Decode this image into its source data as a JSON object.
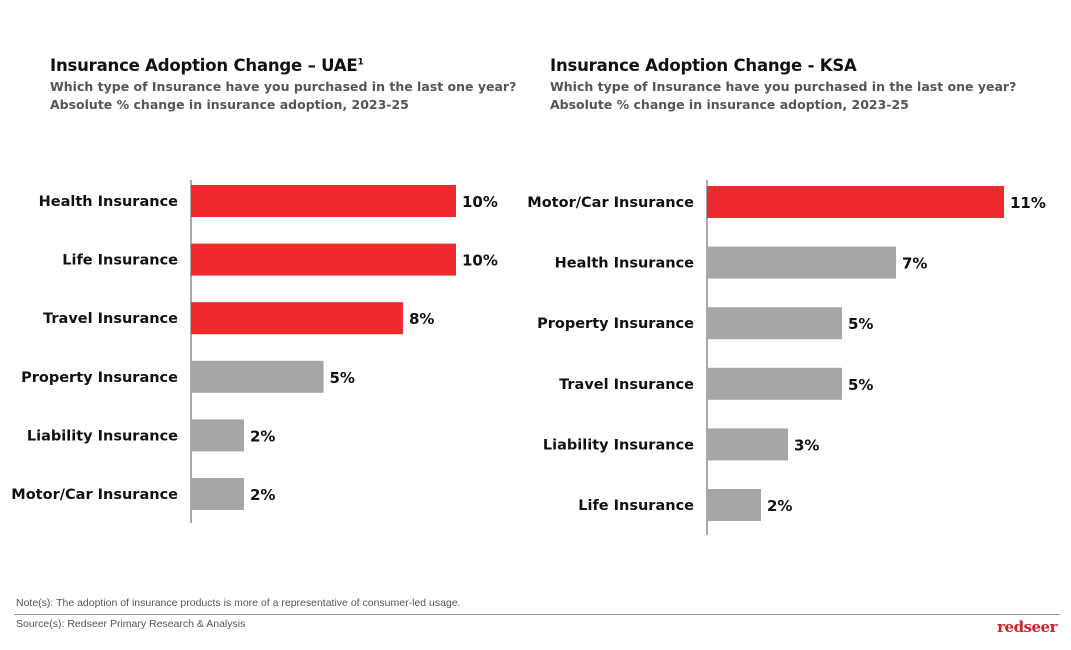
{
  "chart_data": [
    {
      "type": "bar",
      "orientation": "horizontal",
      "title": "Insurance Adoption Change – UAE",
      "title_sup": "1",
      "subtitle": [
        "Which type of Insurance have you purchased in the last one year?",
        "Absolute % change in insurance adoption, 2023-25"
      ],
      "categories": [
        "Health Insurance",
        "Life Insurance",
        "Travel Insurance",
        "Property Insurance",
        "Liability Insurance",
        "Motor/Car Insurance"
      ],
      "values": [
        10,
        10,
        8,
        5,
        2,
        2
      ],
      "labels": [
        "10%",
        "10%",
        "8%",
        "5%",
        "2%",
        "2%"
      ],
      "highlight": [
        true,
        true,
        true,
        false,
        false,
        false
      ],
      "grid": false
    },
    {
      "type": "bar",
      "orientation": "horizontal",
      "title": "Insurance Adoption Change - KSA",
      "title_sup": "",
      "subtitle": [
        "Which type of Insurance have you purchased in the last one year?",
        "Absolute % change in insurance adoption, 2023-25"
      ],
      "categories": [
        "Motor/Car Insurance",
        "Health Insurance",
        "Property Insurance",
        "Travel Insurance",
        "Liability Insurance",
        "Life Insurance"
      ],
      "values": [
        11,
        7,
        5,
        5,
        3,
        2
      ],
      "labels": [
        "11%",
        "7%",
        "5%",
        "5%",
        "3%",
        "2%"
      ],
      "highlight": [
        true,
        false,
        false,
        false,
        false,
        false
      ],
      "grid": false
    }
  ],
  "colors": {
    "highlight": "#ee2a2f",
    "default": "#a6a6a6"
  },
  "footer": {
    "note": "Note(s): The adoption of insurance products is more of a representative of consumer-led usage.",
    "source": "Source(s): Redseer Primary Research & Analysis",
    "logo": "redseer"
  }
}
